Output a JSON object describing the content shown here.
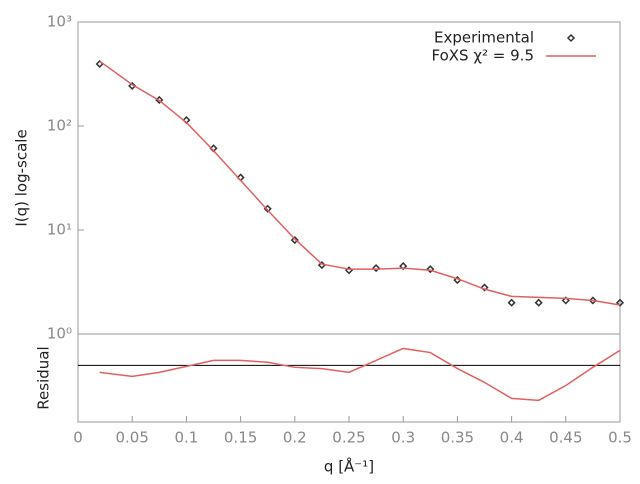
{
  "chart_data": [
    {
      "type": "line",
      "ylabel": "I(q) log-scale",
      "log_scale": true,
      "legend": "upper right",
      "x": [
        0.02,
        0.05,
        0.075,
        0.1,
        0.125,
        0.15,
        0.175,
        0.2,
        0.225,
        0.25,
        0.275,
        0.3,
        0.325,
        0.35,
        0.375,
        0.4,
        0.425,
        0.45,
        0.475,
        0.5
      ],
      "xlim": [
        0,
        0.5
      ],
      "ylim": [
        1,
        1000
      ],
      "yticks": [
        {
          "value": 1,
          "label": "10⁰"
        },
        {
          "value": 10,
          "label": "10¹"
        },
        {
          "value": 100,
          "label": "10²"
        },
        {
          "value": 1000,
          "label": "10³"
        }
      ],
      "series": [
        {
          "name": "Experimental",
          "color": "#333333",
          "marker": "diamond",
          "values": [
            395,
            243,
            178,
            114,
            61,
            32,
            16,
            8,
            4.6,
            4.1,
            4.3,
            4.5,
            4.2,
            3.3,
            2.8,
            2.0,
            2.0,
            2.1,
            2.1,
            2.0
          ]
        },
        {
          "name": "FoXS χ² = 9.5",
          "color": "#e06060",
          "values": [
            420,
            250,
            176,
            108,
            58,
            30,
            15.5,
            8.2,
            4.7,
            4.2,
            4.2,
            4.3,
            4.1,
            3.4,
            2.7,
            2.3,
            2.25,
            2.2,
            2.1,
            1.9
          ]
        }
      ]
    },
    {
      "type": "line",
      "ylabel": "Residual",
      "xlabel": "q [Å⁻¹]",
      "zero_line": true,
      "x": [
        0.02,
        0.05,
        0.075,
        0.1,
        0.125,
        0.15,
        0.175,
        0.2,
        0.225,
        0.25,
        0.275,
        0.3,
        0.325,
        0.35,
        0.375,
        0.4,
        0.425,
        0.45,
        0.475,
        0.5
      ],
      "xlim": [
        0,
        0.5
      ],
      "xticks": [
        0,
        0.05,
        0.1,
        0.15,
        0.2,
        0.25,
        0.3,
        0.35,
        0.4,
        0.45,
        0.5
      ],
      "ylim": [
        -1.8,
        1
      ],
      "series": [
        {
          "color": "#e06060",
          "values": [
            -0.22,
            -0.35,
            -0.22,
            -0.03,
            0.16,
            0.16,
            0.1,
            -0.06,
            -0.1,
            -0.22,
            0.16,
            0.54,
            0.41,
            -0.1,
            -0.54,
            -1.05,
            -1.11,
            -0.64,
            -0.06,
            0.48
          ]
        }
      ]
    }
  ]
}
